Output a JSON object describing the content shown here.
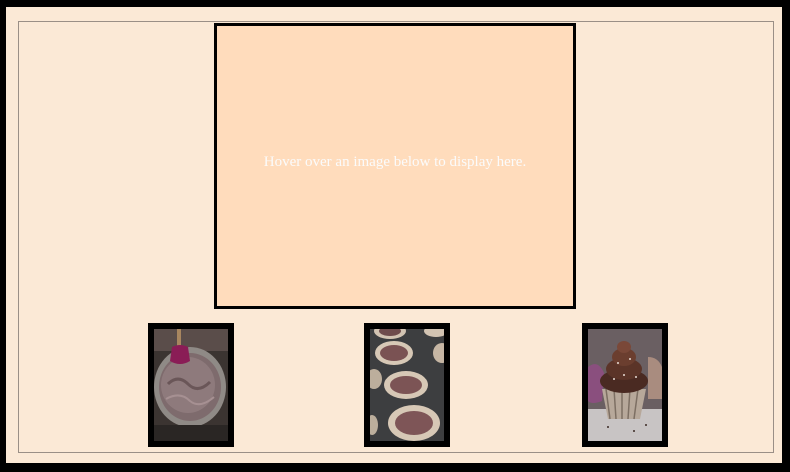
{
  "display": {
    "message": "Hover over an image below to display here."
  },
  "gallery": {
    "items": [
      {
        "subject": "chocolate-batter-bowl"
      },
      {
        "subject": "cupcake-tin-batter"
      },
      {
        "subject": "frosted-chocolate-cupcake"
      }
    ]
  },
  "colors": {
    "page_background": "#fbe9d6",
    "display_background": "#ffdcbc",
    "border": "#000000",
    "message_text": "#fbfbfb"
  }
}
